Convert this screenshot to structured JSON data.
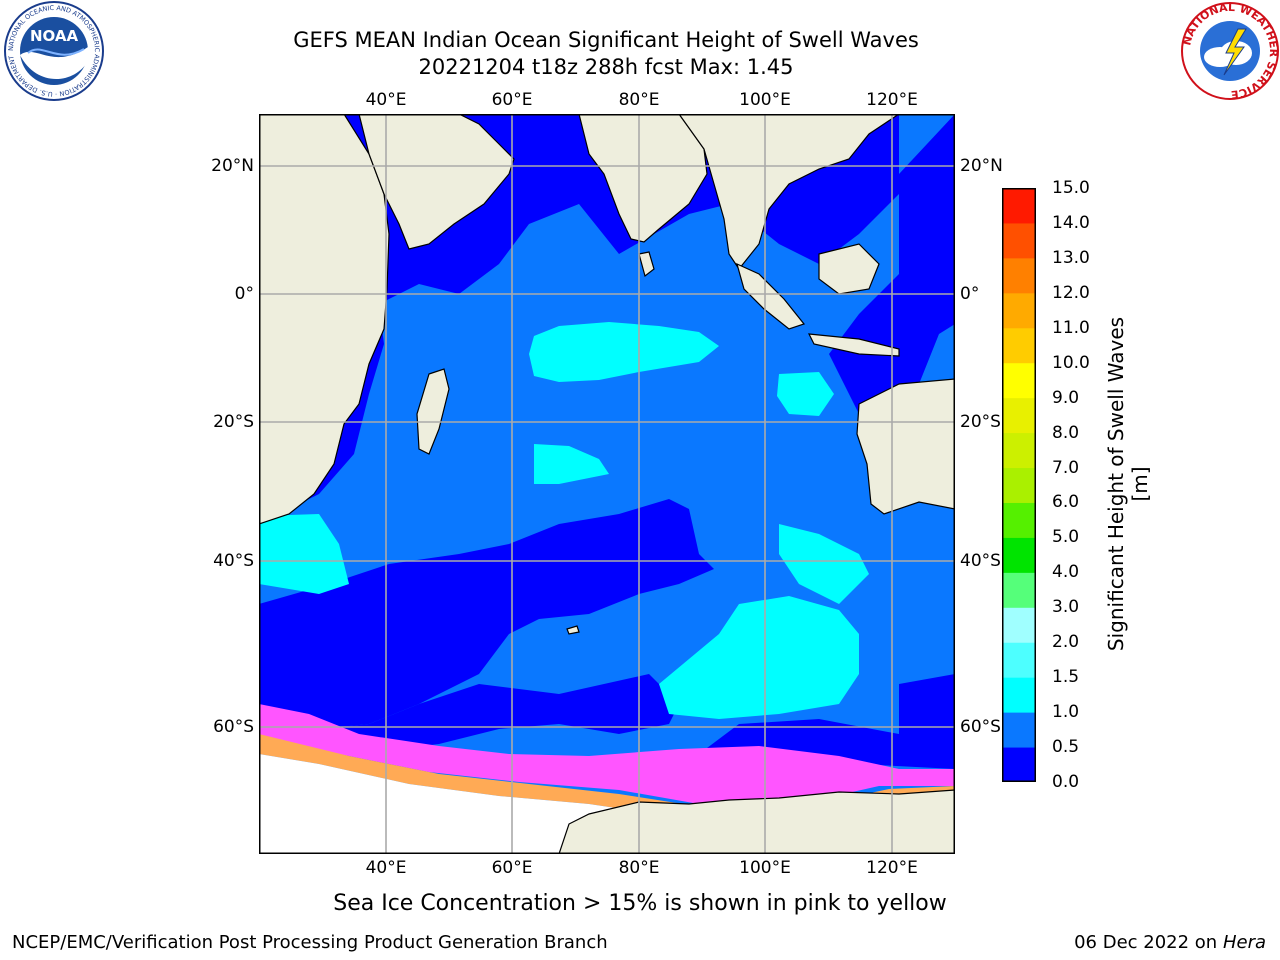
{
  "title_line1": "GEFS MEAN Indian Ocean Significant Height of Swell Waves",
  "title_line2": "20221204 t18z 288h fcst   Max: 1.45",
  "lon_labels": [
    "40°E",
    "60°E",
    "80°E",
    "100°E",
    "120°E"
  ],
  "lat_labels": [
    "20°N",
    "0°",
    "20°S",
    "40°S",
    "60°S"
  ],
  "colorbar": {
    "label": "Significant Height of Swell Waves [m]",
    "ticks": [
      "0.0",
      "0.5",
      "1.0",
      "1.5",
      "2.0",
      "3.0",
      "4.0",
      "5.0",
      "6.0",
      "7.0",
      "8.0",
      "9.0",
      "10.0",
      "11.0",
      "12.0",
      "13.0",
      "14.0",
      "15.0"
    ],
    "colors": [
      "#0000ff",
      "#0a78ff",
      "#00ffff",
      "#4dffff",
      "#a0ffff",
      "#55ff7a",
      "#00e400",
      "#55f000",
      "#aaf000",
      "#ccf000",
      "#e8f000",
      "#ffff00",
      "#ffcc00",
      "#ffaa00",
      "#ff8000",
      "#ff5000",
      "#ff1a00"
    ]
  },
  "map_colors": {
    "land": "#eeeedd",
    "ocean_deep_blue": "#0000ff",
    "ocean_mid_blue": "#0a78ff",
    "ocean_cyan": "#00ffff",
    "sea_ice_pink": "#ff55ff",
    "sea_ice_orange": "#ffaa55",
    "sea_ice_yellow": "#ffee88",
    "grid": "#aaaaaa"
  },
  "caption": "Sea Ice Concentration > 15% is shown in pink to yellow",
  "footer_left": "NCEP/EMC/Verification Post Processing Product Generation Branch",
  "footer_right_date": "06 Dec 2022 on",
  "footer_right_host": "Hera",
  "logos": {
    "noaa_text": "NOAA",
    "noaa_ring_text": "NATIONAL OCEANIC AND ATMOSPHERIC ADMINISTRATION · U.S. DEPARTMENT OF COMMERCE",
    "nws_ring_text": "NATIONAL WEATHER SERVICE"
  }
}
